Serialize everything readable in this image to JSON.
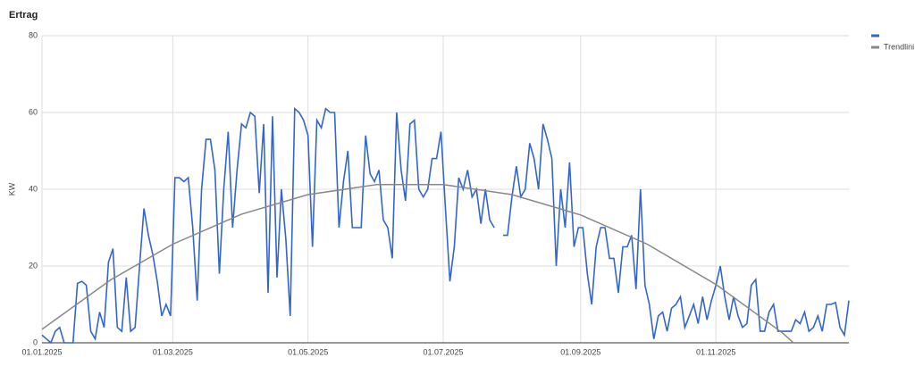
{
  "chart_data": {
    "type": "line",
    "title": "Ertrag",
    "y_label": "KW",
    "x": [
      "2025-01-01",
      "2025-01-03",
      "2025-01-05",
      "2025-01-07",
      "2025-01-09",
      "2025-01-11",
      "2025-01-13",
      "2025-01-15",
      "2025-01-17",
      "2025-01-19",
      "2025-01-21",
      "2025-01-23",
      "2025-01-25",
      "2025-01-27",
      "2025-01-29",
      "2025-01-31",
      "2025-02-02",
      "2025-02-04",
      "2025-02-06",
      "2025-02-08",
      "2025-02-10",
      "2025-02-12",
      "2025-02-14",
      "2025-02-16",
      "2025-02-18",
      "2025-02-20",
      "2025-02-22",
      "2025-02-24",
      "2025-02-26",
      "2025-02-28",
      "2025-03-02",
      "2025-03-04",
      "2025-03-06",
      "2025-03-08",
      "2025-03-10",
      "2025-03-12",
      "2025-03-14",
      "2025-03-16",
      "2025-03-18",
      "2025-03-20",
      "2025-03-22",
      "2025-03-24",
      "2025-03-26",
      "2025-03-28",
      "2025-03-30",
      "2025-04-01",
      "2025-04-03",
      "2025-04-05",
      "2025-04-07",
      "2025-04-09",
      "2025-04-11",
      "2025-04-13",
      "2025-04-15",
      "2025-04-17",
      "2025-04-19",
      "2025-04-21",
      "2025-04-23",
      "2025-04-25",
      "2025-04-27",
      "2025-04-29",
      "2025-05-01",
      "2025-05-03",
      "2025-05-05",
      "2025-05-07",
      "2025-05-09",
      "2025-05-11",
      "2025-05-13",
      "2025-05-15",
      "2025-05-17",
      "2025-05-19",
      "2025-05-21",
      "2025-05-23",
      "2025-05-25",
      "2025-05-27",
      "2025-05-29",
      "2025-05-31",
      "2025-06-02",
      "2025-06-04",
      "2025-06-06",
      "2025-06-08",
      "2025-06-10",
      "2025-06-12",
      "2025-06-14",
      "2025-06-16",
      "2025-06-18",
      "2025-06-20",
      "2025-06-22",
      "2025-06-24",
      "2025-06-26",
      "2025-06-28",
      "2025-06-30",
      "2025-07-02",
      "2025-07-04",
      "2025-07-06",
      "2025-07-08",
      "2025-07-10",
      "2025-07-12",
      "2025-07-14",
      "2025-07-16",
      "2025-07-18",
      "2025-07-20",
      "2025-07-22",
      "2025-07-24",
      "2025-07-26",
      "2025-07-28",
      "2025-07-30",
      "2025-08-01",
      "2025-08-03",
      "2025-08-05",
      "2025-08-07",
      "2025-08-09",
      "2025-08-11",
      "2025-08-13",
      "2025-08-15",
      "2025-08-17",
      "2025-08-19",
      "2025-08-21",
      "2025-08-23",
      "2025-08-25",
      "2025-08-27",
      "2025-08-29",
      "2025-08-31",
      "2025-09-02",
      "2025-09-04",
      "2025-09-06",
      "2025-09-08",
      "2025-09-10",
      "2025-09-12",
      "2025-09-14",
      "2025-09-16",
      "2025-09-18",
      "2025-09-20",
      "2025-09-22",
      "2025-09-24",
      "2025-09-26",
      "2025-09-28",
      "2025-09-30",
      "2025-10-02",
      "2025-10-04",
      "2025-10-06",
      "2025-10-08",
      "2025-10-10",
      "2025-10-12",
      "2025-10-14",
      "2025-10-16",
      "2025-10-18",
      "2025-10-20",
      "2025-10-22",
      "2025-10-24",
      "2025-10-26",
      "2025-10-28",
      "2025-10-30",
      "2025-11-01",
      "2025-11-03",
      "2025-11-05",
      "2025-11-07",
      "2025-11-09",
      "2025-11-11",
      "2025-11-13",
      "2025-11-15",
      "2025-11-17",
      "2025-11-19",
      "2025-11-21",
      "2025-11-23",
      "2025-11-25",
      "2025-11-27",
      "2025-11-29",
      "2025-12-01",
      "2025-12-03",
      "2025-12-05",
      "2025-12-07",
      "2025-12-09",
      "2025-12-11",
      "2025-12-13",
      "2025-12-15",
      "2025-12-17",
      "2025-12-19",
      "2025-12-21",
      "2025-12-23",
      "2025-12-25",
      "2025-12-27",
      "2025-12-29",
      "2025-12-31"
    ],
    "series": [
      {
        "color": "#3366cc",
        "values": [
          2,
          1,
          0,
          3,
          4,
          0,
          0,
          0,
          15.5,
          16,
          15,
          3,
          1,
          8,
          4,
          21,
          24.5,
          4,
          3,
          17,
          3,
          4,
          20,
          35,
          28,
          23,
          16,
          7,
          10,
          7,
          43,
          43,
          42,
          43,
          30,
          11,
          40,
          53,
          53,
          45,
          18,
          40,
          55,
          30,
          45,
          57,
          56,
          60,
          59,
          39,
          57,
          13,
          59,
          17,
          40,
          27,
          7,
          61,
          60,
          58,
          54,
          25,
          58,
          56,
          61,
          60,
          60,
          30,
          42,
          50,
          30,
          30,
          30,
          54,
          44,
          42,
          45,
          32,
          30,
          22,
          60,
          45,
          37,
          57,
          58,
          40,
          38,
          40,
          48,
          48,
          55,
          35,
          16,
          25,
          43,
          40,
          45,
          38,
          40,
          31,
          40,
          32,
          30,
          null,
          28,
          28,
          38,
          46,
          38,
          40,
          52,
          48,
          40,
          57,
          53,
          48,
          20,
          40,
          30,
          47,
          25,
          30,
          30,
          18,
          10,
          25,
          30,
          30,
          22,
          22,
          13,
          25,
          25,
          28,
          14,
          40,
          15,
          10,
          1,
          7,
          8,
          3,
          9,
          10,
          12,
          4,
          7,
          10,
          5,
          12,
          6,
          11,
          15,
          20,
          12,
          6,
          12,
          7,
          4,
          5,
          15,
          16.5,
          3,
          3,
          8,
          10,
          3,
          3,
          3,
          3,
          6,
          5,
          8,
          3,
          4,
          7,
          3,
          10,
          10,
          10.5,
          4,
          2,
          11
        ]
      },
      {
        "name": "Trendlini",
        "color": "#888888",
        "x": [
          "2025-01-01",
          "2025-02-01",
          "2025-03-01",
          "2025-04-01",
          "2025-05-01",
          "2025-06-01",
          "2025-07-01",
          "2025-08-01",
          "2025-09-01",
          "2025-10-01",
          "2025-11-01",
          "2025-12-01",
          "2025-12-06"
        ],
        "values": [
          3.5,
          16.4,
          25.7,
          33.5,
          38.6,
          41.2,
          41.2,
          38.6,
          33.3,
          25.7,
          15.2,
          2.6,
          0
        ]
      }
    ],
    "xlim": [
      "2025-01-01",
      "2025-12-31"
    ],
    "xticks": [
      {
        "value": "2025-01-01",
        "label": "01.01.2025"
      },
      {
        "value": "2025-03-01",
        "label": "01.03.2025"
      },
      {
        "value": "2025-05-01",
        "label": "01.05.2025"
      },
      {
        "value": "2025-07-01",
        "label": "01.07.2025"
      },
      {
        "value": "2025-09-01",
        "label": "01.09.2025"
      },
      {
        "value": "2025-11-01",
        "label": "01.11.2025"
      }
    ],
    "ylim": [
      0,
      80
    ],
    "yticks": [
      0,
      20,
      40,
      60,
      80
    ],
    "grid": true
  }
}
